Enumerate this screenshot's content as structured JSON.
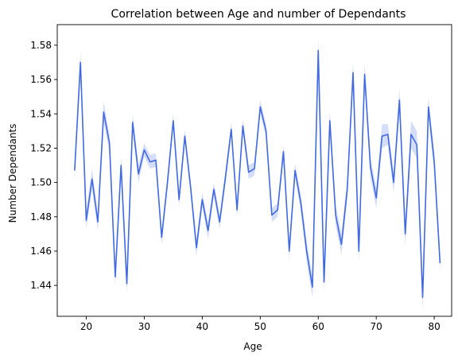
{
  "chart_data": {
    "type": "line",
    "title": "Correlation between Age and number of Dependants",
    "xlabel": "Age",
    "ylabel": "Number Dependants",
    "xlim": [
      15,
      83
    ],
    "ylim": [
      1.422,
      1.592
    ],
    "x_ticks": [
      20,
      30,
      40,
      50,
      60,
      70,
      80
    ],
    "y_ticks": [
      1.44,
      1.46,
      1.48,
      1.5,
      1.52,
      1.54,
      1.56,
      1.58
    ],
    "x_tick_labels": [
      "20",
      "30",
      "40",
      "50",
      "60",
      "70",
      "80"
    ],
    "y_tick_labels": [
      "1.44",
      "1.46",
      "1.48",
      "1.50",
      "1.52",
      "1.54",
      "1.56",
      "1.58"
    ],
    "grid": false,
    "legend": "none",
    "series": [
      {
        "color": "#4169e1",
        "band_color": "#4169e1",
        "x": [
          18,
          19,
          20,
          21,
          22,
          23,
          24,
          25,
          26,
          27,
          28,
          29,
          30,
          31,
          32,
          33,
          34,
          35,
          36,
          37,
          38,
          39,
          40,
          41,
          42,
          43,
          44,
          45,
          46,
          47,
          48,
          49,
          50,
          51,
          52,
          53,
          54,
          55,
          56,
          57,
          58,
          59,
          60,
          61,
          62,
          63,
          64,
          65,
          66,
          67,
          68,
          69,
          70,
          71,
          72,
          73,
          74,
          75,
          76,
          77,
          78,
          79,
          80,
          81
        ],
        "y": [
          1.507,
          1.57,
          1.478,
          1.502,
          1.477,
          1.541,
          1.523,
          1.445,
          1.51,
          1.441,
          1.535,
          1.505,
          1.519,
          1.512,
          1.513,
          1.468,
          1.5,
          1.536,
          1.49,
          1.527,
          1.497,
          1.462,
          1.49,
          1.472,
          1.496,
          1.477,
          1.503,
          1.531,
          1.484,
          1.533,
          1.506,
          1.508,
          1.544,
          1.53,
          1.481,
          1.484,
          1.518,
          1.46,
          1.507,
          1.488,
          1.46,
          1.439,
          1.577,
          1.442,
          1.536,
          1.481,
          1.464,
          1.496,
          1.564,
          1.46,
          1.563,
          1.509,
          1.491,
          1.527,
          1.528,
          1.5,
          1.548,
          1.47,
          1.528,
          1.522,
          1.433,
          1.544,
          1.512,
          1.453
        ],
        "ci_halfwidth": [
          0.006,
          0.006,
          0.005,
          0.006,
          0.005,
          0.006,
          0.005,
          0.005,
          0.005,
          0.006,
          0.005,
          0.005,
          0.004,
          0.004,
          0.004,
          0.004,
          0.004,
          0.004,
          0.004,
          0.004,
          0.004,
          0.005,
          0.004,
          0.005,
          0.004,
          0.004,
          0.004,
          0.004,
          0.004,
          0.004,
          0.004,
          0.004,
          0.004,
          0.004,
          0.004,
          0.004,
          0.004,
          0.005,
          0.004,
          0.005,
          0.006,
          0.006,
          0.007,
          0.006,
          0.006,
          0.006,
          0.006,
          0.006,
          0.006,
          0.006,
          0.006,
          0.006,
          0.006,
          0.007,
          0.006,
          0.006,
          0.007,
          0.007,
          0.008,
          0.008,
          0.007,
          0.006,
          0.006,
          0.006
        ]
      }
    ]
  }
}
